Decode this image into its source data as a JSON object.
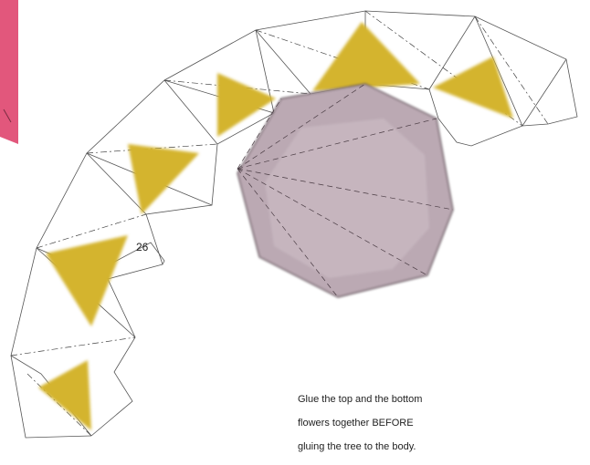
{
  "page_number": "26",
  "instructions": [
    "Glue the top and the bottom",
    "flowers together BEFORE",
    "gluing the tree to the body."
  ],
  "colors": {
    "outline": "#555555",
    "flower_yellow": "#d4b42e",
    "octagon_purple": "#bba9b3",
    "octagon_edge": "#5a4a52",
    "pink_tab": "#e2577c",
    "text": "#222222"
  }
}
